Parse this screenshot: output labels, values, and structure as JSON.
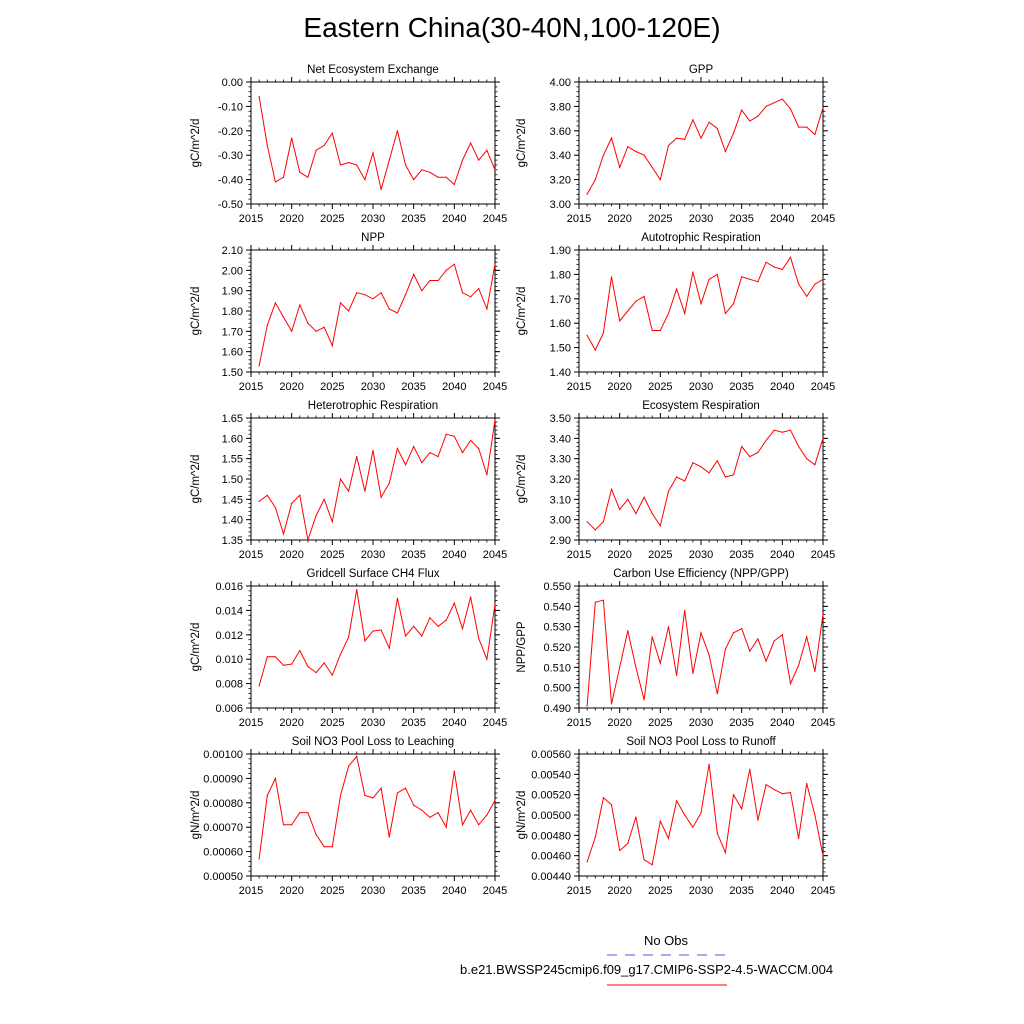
{
  "title": "Eastern China(30-40N,100-120E)",
  "legend": {
    "obs_label": "No Obs",
    "obs_color": "#5555dd",
    "case_label": "b.e21.BWSSP245cmip6.f09_g17.CMIP6-SSP2-4.5-WACCM.004",
    "case_color": "#ff0000"
  },
  "chart_data": [
    {
      "type": "line",
      "title": "Net Ecosystem Exchange",
      "ylabel": "gC/m^2/d",
      "xlim": [
        2015,
        2045
      ],
      "ylim": [
        -0.5,
        0.0
      ],
      "xticks": [
        "2015",
        "2020",
        "2025",
        "2030",
        "2035",
        "2040",
        "2045"
      ],
      "yticks": [
        "0.00",
        "-0.10",
        "-0.20",
        "-0.30",
        "-0.40",
        "-0.50"
      ],
      "ytick_values": [
        0.0,
        -0.1,
        -0.2,
        -0.3,
        -0.4,
        -0.5
      ],
      "x": [
        2016,
        2017,
        2018,
        2019,
        2020,
        2021,
        2022,
        2023,
        2024,
        2025,
        2026,
        2027,
        2028,
        2029,
        2030,
        2031,
        2032,
        2033,
        2034,
        2035,
        2036,
        2037,
        2038,
        2039,
        2040,
        2041,
        2042,
        2043,
        2044,
        2045
      ],
      "values": [
        -0.06,
        -0.26,
        -0.41,
        -0.39,
        -0.23,
        -0.37,
        -0.39,
        -0.28,
        -0.26,
        -0.21,
        -0.34,
        -0.33,
        -0.34,
        -0.4,
        -0.29,
        -0.44,
        -0.32,
        -0.2,
        -0.34,
        -0.4,
        -0.36,
        -0.37,
        -0.39,
        -0.39,
        -0.42,
        -0.32,
        -0.25,
        -0.32,
        -0.28,
        -0.36
      ]
    },
    {
      "type": "line",
      "title": "GPP",
      "ylabel": "gC/m^2/d",
      "xlim": [
        2015,
        2045
      ],
      "ylim": [
        3.0,
        4.0
      ],
      "xticks": [
        "2015",
        "2020",
        "2025",
        "2030",
        "2035",
        "2040",
        "2045"
      ],
      "yticks": [
        "4.00",
        "3.80",
        "3.60",
        "3.40",
        "3.20",
        "3.00"
      ],
      "ytick_values": [
        4.0,
        3.8,
        3.6,
        3.4,
        3.2,
        3.0
      ],
      "x": [
        2016,
        2017,
        2018,
        2019,
        2020,
        2021,
        2022,
        2023,
        2024,
        2025,
        2026,
        2027,
        2028,
        2029,
        2030,
        2031,
        2032,
        2033,
        2034,
        2035,
        2036,
        2037,
        2038,
        2039,
        2040,
        2041,
        2042,
        2043,
        2044,
        2045
      ],
      "values": [
        3.08,
        3.2,
        3.4,
        3.54,
        3.3,
        3.47,
        3.43,
        3.4,
        3.3,
        3.2,
        3.48,
        3.54,
        3.53,
        3.69,
        3.54,
        3.67,
        3.62,
        3.43,
        3.58,
        3.77,
        3.68,
        3.72,
        3.8,
        3.83,
        3.86,
        3.78,
        3.63,
        3.63,
        3.57,
        3.79
      ]
    },
    {
      "type": "line",
      "title": "NPP",
      "ylabel": "gC/m^2/d",
      "xlim": [
        2015,
        2045
      ],
      "ylim": [
        1.5,
        2.1
      ],
      "xticks": [
        "2015",
        "2020",
        "2025",
        "2030",
        "2035",
        "2040",
        "2045"
      ],
      "yticks": [
        "2.10",
        "2.00",
        "1.90",
        "1.80",
        "1.70",
        "1.60",
        "1.50"
      ],
      "ytick_values": [
        2.1,
        2.0,
        1.9,
        1.8,
        1.7,
        1.6,
        1.5
      ],
      "x": [
        2016,
        2017,
        2018,
        2019,
        2020,
        2021,
        2022,
        2023,
        2024,
        2025,
        2026,
        2027,
        2028,
        2029,
        2030,
        2031,
        2032,
        2033,
        2034,
        2035,
        2036,
        2037,
        2038,
        2039,
        2040,
        2041,
        2042,
        2043,
        2044,
        2045
      ],
      "values": [
        1.53,
        1.73,
        1.84,
        1.77,
        1.7,
        1.83,
        1.74,
        1.7,
        1.72,
        1.63,
        1.84,
        1.8,
        1.89,
        1.88,
        1.86,
        1.89,
        1.81,
        1.79,
        1.88,
        1.98,
        1.9,
        1.95,
        1.95,
        2.0,
        2.03,
        1.89,
        1.87,
        1.91,
        1.81,
        2.03
      ]
    },
    {
      "type": "line",
      "title": "Autotrophic Respiration",
      "ylabel": "gC/m^2/d",
      "xlim": [
        2015,
        2045
      ],
      "ylim": [
        1.4,
        1.9
      ],
      "xticks": [
        "2015",
        "2020",
        "2025",
        "2030",
        "2035",
        "2040",
        "2045"
      ],
      "yticks": [
        "1.90",
        "1.80",
        "1.70",
        "1.60",
        "1.50",
        "1.40"
      ],
      "ytick_values": [
        1.9,
        1.8,
        1.7,
        1.6,
        1.5,
        1.4
      ],
      "x": [
        2016,
        2017,
        2018,
        2019,
        2020,
        2021,
        2022,
        2023,
        2024,
        2025,
        2026,
        2027,
        2028,
        2029,
        2030,
        2031,
        2032,
        2033,
        2034,
        2035,
        2036,
        2037,
        2038,
        2039,
        2040,
        2041,
        2042,
        2043,
        2044,
        2045
      ],
      "values": [
        1.55,
        1.49,
        1.56,
        1.79,
        1.61,
        1.65,
        1.69,
        1.71,
        1.57,
        1.57,
        1.64,
        1.74,
        1.64,
        1.81,
        1.68,
        1.78,
        1.8,
        1.64,
        1.68,
        1.79,
        1.78,
        1.77,
        1.85,
        1.83,
        1.82,
        1.87,
        1.76,
        1.71,
        1.76,
        1.78
      ]
    },
    {
      "type": "line",
      "title": "Heterotrophic Respiration",
      "ylabel": "gC/m^2/d",
      "xlim": [
        2015,
        2045
      ],
      "ylim": [
        1.35,
        1.65
      ],
      "xticks": [
        "2015",
        "2020",
        "2025",
        "2030",
        "2035",
        "2040",
        "2045"
      ],
      "yticks": [
        "1.65",
        "1.60",
        "1.55",
        "1.50",
        "1.45",
        "1.40",
        "1.35"
      ],
      "ytick_values": [
        1.65,
        1.6,
        1.55,
        1.5,
        1.45,
        1.4,
        1.35
      ],
      "x": [
        2016,
        2017,
        2018,
        2019,
        2020,
        2021,
        2022,
        2023,
        2024,
        2025,
        2026,
        2027,
        2028,
        2029,
        2030,
        2031,
        2032,
        2033,
        2034,
        2035,
        2036,
        2037,
        2038,
        2039,
        2040,
        2041,
        2042,
        2043,
        2044,
        2045
      ],
      "values": [
        1.445,
        1.46,
        1.43,
        1.365,
        1.44,
        1.46,
        1.35,
        1.41,
        1.45,
        1.395,
        1.5,
        1.47,
        1.555,
        1.47,
        1.57,
        1.455,
        1.49,
        1.575,
        1.535,
        1.58,
        1.54,
        1.565,
        1.555,
        1.61,
        1.605,
        1.565,
        1.595,
        1.575,
        1.51,
        1.645
      ]
    },
    {
      "type": "line",
      "title": "Ecosystem Respiration",
      "ylabel": "gC/m^2/d",
      "xlim": [
        2015,
        2045
      ],
      "ylim": [
        2.9,
        3.5
      ],
      "xticks": [
        "2015",
        "2020",
        "2025",
        "2030",
        "2035",
        "2040",
        "2045"
      ],
      "yticks": [
        "3.50",
        "3.40",
        "3.30",
        "3.20",
        "3.10",
        "3.00",
        "2.90"
      ],
      "ytick_values": [
        3.5,
        3.4,
        3.3,
        3.2,
        3.1,
        3.0,
        2.9
      ],
      "x": [
        2016,
        2017,
        2018,
        2019,
        2020,
        2021,
        2022,
        2023,
        2024,
        2025,
        2026,
        2027,
        2028,
        2029,
        2030,
        2031,
        2032,
        2033,
        2034,
        2035,
        2036,
        2037,
        2038,
        2039,
        2040,
        2041,
        2042,
        2043,
        2044,
        2045
      ],
      "values": [
        2.99,
        2.95,
        2.99,
        3.15,
        3.05,
        3.1,
        3.03,
        3.11,
        3.03,
        2.97,
        3.14,
        3.21,
        3.19,
        3.28,
        3.26,
        3.23,
        3.29,
        3.21,
        3.22,
        3.36,
        3.31,
        3.33,
        3.39,
        3.44,
        3.43,
        3.44,
        3.36,
        3.3,
        3.27,
        3.4
      ]
    },
    {
      "type": "line",
      "title": "Gridcell Surface CH4 Flux",
      "ylabel": "gC/m^2/d",
      "xlim": [
        2015,
        2045
      ],
      "ylim": [
        0.006,
        0.016
      ],
      "xticks": [
        "2015",
        "2020",
        "2025",
        "2030",
        "2035",
        "2040",
        "2045"
      ],
      "yticks": [
        "0.016",
        "0.014",
        "0.012",
        "0.010",
        "0.008",
        "0.006"
      ],
      "ytick_values": [
        0.016,
        0.014,
        0.012,
        0.01,
        0.008,
        0.006
      ],
      "x": [
        2016,
        2017,
        2018,
        2019,
        2020,
        2021,
        2022,
        2023,
        2024,
        2025,
        2026,
        2027,
        2028,
        2029,
        2030,
        2031,
        2032,
        2033,
        2034,
        2035,
        2036,
        2037,
        2038,
        2039,
        2040,
        2041,
        2042,
        2043,
        2044,
        2045
      ],
      "values": [
        0.0078,
        0.0102,
        0.0102,
        0.0095,
        0.0096,
        0.0107,
        0.0094,
        0.0089,
        0.0097,
        0.0087,
        0.0104,
        0.0118,
        0.0157,
        0.0115,
        0.0123,
        0.0124,
        0.0109,
        0.015,
        0.0119,
        0.0127,
        0.0119,
        0.0134,
        0.0127,
        0.0132,
        0.0146,
        0.0125,
        0.0151,
        0.0117,
        0.01,
        0.0145
      ]
    },
    {
      "type": "line",
      "title": "Carbon Use Efficiency (NPP/GPP)",
      "ylabel": "NPP/GPP",
      "xlim": [
        2015,
        2045
      ],
      "ylim": [
        0.49,
        0.55
      ],
      "xticks": [
        "2015",
        "2020",
        "2025",
        "2030",
        "2035",
        "2040",
        "2045"
      ],
      "yticks": [
        "0.550",
        "0.540",
        "0.530",
        "0.520",
        "0.510",
        "0.500",
        "0.490"
      ],
      "ytick_values": [
        0.55,
        0.54,
        0.53,
        0.52,
        0.51,
        0.5,
        0.49
      ],
      "x": [
        2016,
        2017,
        2018,
        2019,
        2020,
        2021,
        2022,
        2023,
        2024,
        2025,
        2026,
        2027,
        2028,
        2029,
        2030,
        2031,
        2032,
        2033,
        2034,
        2035,
        2036,
        2037,
        2038,
        2039,
        2040,
        2041,
        2042,
        2043,
        2044,
        2045
      ],
      "values": [
        0.491,
        0.542,
        0.543,
        0.492,
        0.51,
        0.528,
        0.51,
        0.494,
        0.525,
        0.512,
        0.53,
        0.506,
        0.538,
        0.507,
        0.527,
        0.516,
        0.497,
        0.519,
        0.527,
        0.529,
        0.518,
        0.524,
        0.513,
        0.523,
        0.526,
        0.502,
        0.511,
        0.525,
        0.508,
        0.536
      ]
    },
    {
      "type": "line",
      "title": "Soil NO3 Pool Loss to Leaching",
      "ylabel": "gN/m^2/d",
      "xlim": [
        2015,
        2045
      ],
      "ylim": [
        0.0005,
        0.001
      ],
      "xticks": [
        "2015",
        "2020",
        "2025",
        "2030",
        "2035",
        "2040",
        "2045"
      ],
      "yticks": [
        "0.00100",
        "0.00090",
        "0.00080",
        "0.00070",
        "0.00060",
        "0.00050"
      ],
      "ytick_values": [
        0.001,
        0.0009,
        0.0008,
        0.0007,
        0.0006,
        0.0005
      ],
      "x": [
        2016,
        2017,
        2018,
        2019,
        2020,
        2021,
        2022,
        2023,
        2024,
        2025,
        2026,
        2027,
        2028,
        2029,
        2030,
        2031,
        2032,
        2033,
        2034,
        2035,
        2036,
        2037,
        2038,
        2039,
        2040,
        2041,
        2042,
        2043,
        2044,
        2045
      ],
      "values": [
        0.00057,
        0.00083,
        0.0009,
        0.00071,
        0.00071,
        0.00076,
        0.00076,
        0.00067,
        0.00062,
        0.00062,
        0.00083,
        0.00095,
        0.00099,
        0.00083,
        0.00082,
        0.00086,
        0.00066,
        0.00084,
        0.00086,
        0.00079,
        0.00077,
        0.00074,
        0.00076,
        0.0007,
        0.00093,
        0.00071,
        0.00077,
        0.00071,
        0.00075,
        0.00081
      ]
    },
    {
      "type": "line",
      "title": "Soil NO3 Pool Loss to Runoff",
      "ylabel": "gN/m^2/d",
      "xlim": [
        2015,
        2045
      ],
      "ylim": [
        0.0044,
        0.0056
      ],
      "xticks": [
        "2015",
        "2020",
        "2025",
        "2030",
        "2035",
        "2040",
        "2045"
      ],
      "yticks": [
        "0.00560",
        "0.00540",
        "0.00520",
        "0.00500",
        "0.00480",
        "0.00460",
        "0.00440"
      ],
      "ytick_values": [
        0.0056,
        0.0054,
        0.0052,
        0.005,
        0.0048,
        0.0046,
        0.0044
      ],
      "x": [
        2016,
        2017,
        2018,
        2019,
        2020,
        2021,
        2022,
        2023,
        2024,
        2025,
        2026,
        2027,
        2028,
        2029,
        2030,
        2031,
        2032,
        2033,
        2034,
        2035,
        2036,
        2037,
        2038,
        2039,
        2040,
        2041,
        2042,
        2043,
        2044,
        2045
      ],
      "values": [
        0.00454,
        0.00478,
        0.00517,
        0.0051,
        0.00465,
        0.00472,
        0.00498,
        0.00456,
        0.00451,
        0.00494,
        0.00477,
        0.00514,
        0.005,
        0.00488,
        0.00502,
        0.0055,
        0.00482,
        0.00463,
        0.0052,
        0.00506,
        0.00545,
        0.00495,
        0.0053,
        0.00525,
        0.00521,
        0.00522,
        0.00477,
        0.00531,
        0.005,
        0.0046
      ]
    }
  ]
}
